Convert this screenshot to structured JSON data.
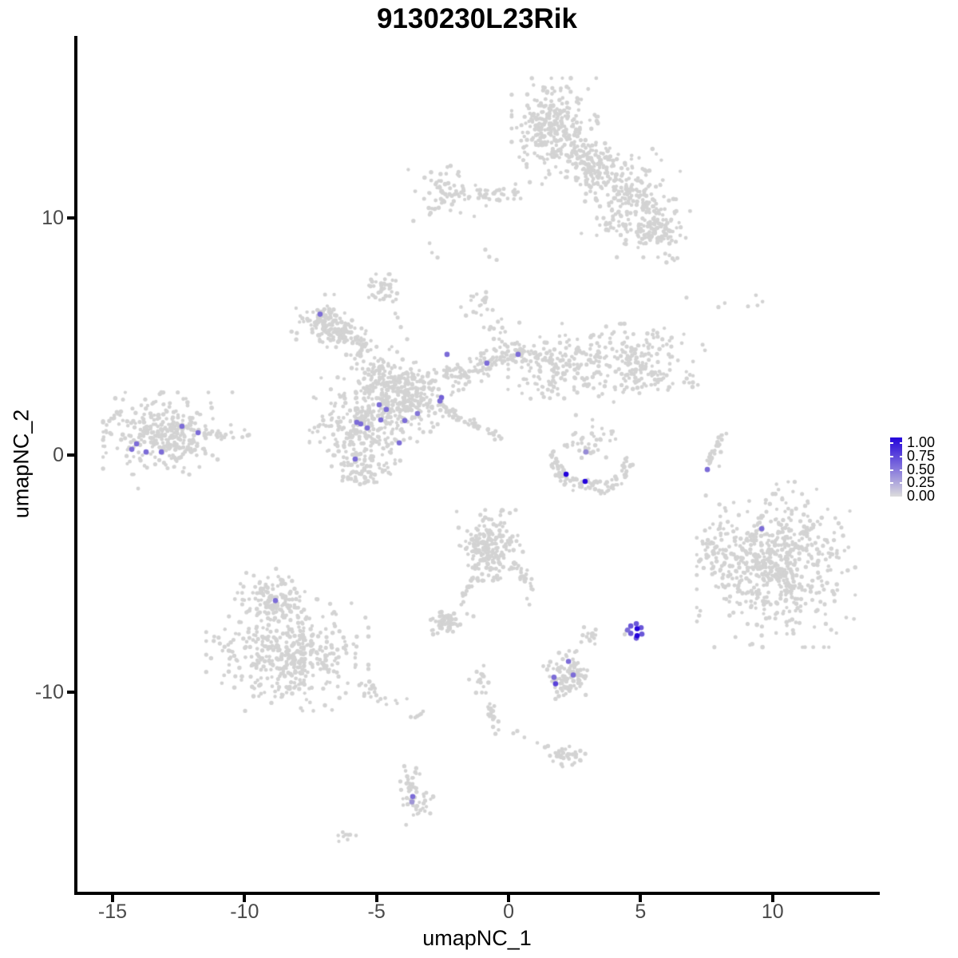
{
  "title": "9130230L23Rik",
  "axes": {
    "x": {
      "label": "umapNC_1",
      "tick_values": [
        -15,
        -10,
        -5,
        0,
        5,
        10
      ],
      "tick_labels": [
        "-15",
        "-10",
        "-5",
        "0",
        "5",
        "10"
      ]
    },
    "y": {
      "label": "umapNC_2",
      "tick_values": [
        10,
        0,
        -10
      ],
      "tick_labels": [
        "10",
        "0",
        "-10"
      ]
    }
  },
  "legend": {
    "tick_labels": [
      "1.00",
      "0.75",
      "0.50",
      "0.25",
      "0.00"
    ],
    "tick_values": [
      1.0,
      0.75,
      0.5,
      0.25,
      0.0
    ],
    "color_high": "#2404DB",
    "color_low": "#DCDCDC"
  },
  "chart_data": {
    "type": "scatter",
    "title": "9130230L23Rik",
    "xlabel": "umapNC_1",
    "ylabel": "umapNC_2",
    "xlim": [
      -16.39,
      14.0
    ],
    "ylim": [
      -18.39,
      17.65
    ],
    "grid": false,
    "point_colors": {
      "background": "#D3D3D3",
      "expression_low": "#D3D3D3",
      "expression_high": "#2404DB"
    },
    "background_clusters": [
      {
        "type": "gauss",
        "cx": 1.75,
        "cy": 13.64,
        "sx": 0.68,
        "sy": 0.93,
        "n": 300
      },
      {
        "type": "gauss",
        "cx": 3.27,
        "cy": 12.12,
        "sx": 0.42,
        "sy": 0.55,
        "n": 130
      },
      {
        "type": "gauss",
        "cx": 4.63,
        "cy": 10.61,
        "sx": 0.78,
        "sy": 0.95,
        "n": 250
      },
      {
        "type": "gauss",
        "cx": 5.84,
        "cy": 9.43,
        "sx": 0.45,
        "sy": 0.55,
        "n": 70
      },
      {
        "type": "line",
        "x1": -2.55,
        "y1": 10.95,
        "x2": 0.65,
        "y2": 11.02,
        "j": 0.16,
        "n": 55
      },
      {
        "type": "gauss",
        "cx": -2.69,
        "cy": 11.35,
        "sx": 0.5,
        "sy": 0.62,
        "n": 40
      },
      {
        "type": "points",
        "pts": [
          [
            -1.82,
            10.2
          ],
          [
            -1.3,
            10.05
          ],
          [
            -2.2,
            10.3
          ],
          [
            -0.85,
            10.5
          ],
          [
            -2.99,
            8.92
          ],
          [
            -2.9,
            8.52
          ],
          [
            -2.69,
            8.32
          ],
          [
            -0.73,
            8.35
          ],
          [
            -0.45,
            8.22
          ],
          [
            -0.88,
            8.65
          ]
        ]
      },
      {
        "type": "points",
        "pts": [
          [
            6.74,
            6.63
          ],
          [
            8.19,
            6.4
          ],
          [
            9.37,
            6.73
          ],
          [
            9.62,
            6.46
          ],
          [
            9.07,
            6.26
          ],
          [
            9.43,
            6.3
          ],
          [
            7.95,
            6.23
          ],
          [
            7.35,
            4.65
          ],
          [
            7.44,
            4.41
          ]
        ]
      },
      {
        "type": "gauss",
        "cx": -12.91,
        "cy": 0.91,
        "sx": 1.02,
        "sy": 0.72,
        "n": 330
      },
      {
        "type": "line",
        "x1": -11.2,
        "y1": 0.75,
        "x2": -9.7,
        "y2": 0.82,
        "j": 0.12,
        "n": 14
      },
      {
        "type": "points",
        "pts": [
          [
            -14.03,
            -1.41
          ]
        ]
      },
      {
        "type": "line",
        "x1": -7.32,
        "y1": 5.89,
        "x2": -5.2,
        "y2": 4.38,
        "j": 0.3,
        "n": 130
      },
      {
        "type": "gauss",
        "cx": -7.02,
        "cy": 5.56,
        "sx": 0.5,
        "sy": 0.5,
        "n": 60
      },
      {
        "type": "gauss",
        "cx": -3.69,
        "cy": 2.53,
        "sx": 0.75,
        "sy": 0.65,
        "n": 230
      },
      {
        "type": "gauss",
        "cx": -5.5,
        "cy": 1.18,
        "sx": 0.85,
        "sy": 0.95,
        "n": 300
      },
      {
        "type": "gauss",
        "cx": -5.5,
        "cy": -0.6,
        "sx": 0.5,
        "sy": 0.4,
        "n": 60
      },
      {
        "type": "gauss",
        "cx": -4.9,
        "cy": 3.47,
        "sx": 0.5,
        "sy": 0.5,
        "n": 80
      },
      {
        "type": "line",
        "x1": -2.33,
        "y1": 3.2,
        "x2": 0.54,
        "y2": 4.38,
        "j": 0.28,
        "n": 120
      },
      {
        "type": "gauss",
        "cx": 1.9,
        "cy": 3.87,
        "sx": 0.8,
        "sy": 0.75,
        "n": 170
      },
      {
        "type": "gauss",
        "cx": 4.78,
        "cy": 3.8,
        "sx": 0.92,
        "sy": 0.72,
        "n": 190
      },
      {
        "type": "line",
        "x1": 6.44,
        "y1": 3.37,
        "x2": 7.35,
        "y2": 3.03,
        "j": 0.15,
        "n": 8
      },
      {
        "type": "line",
        "x1": -2.69,
        "y1": 2.12,
        "x2": -0.27,
        "y2": 0.67,
        "j": 0.09,
        "n": 50
      },
      {
        "type": "gauss",
        "cx": -0.51,
        "cy": 5.22,
        "sx": 0.45,
        "sy": 0.45,
        "n": 15
      },
      {
        "type": "gauss",
        "cx": -1.18,
        "cy": 6.33,
        "sx": 0.3,
        "sy": 0.22,
        "n": 18
      },
      {
        "type": "gauss",
        "cx": -4.81,
        "cy": 7.1,
        "sx": 0.3,
        "sy": 0.26,
        "n": 35
      },
      {
        "type": "points",
        "pts": [
          [
            -4.38,
            6.46
          ],
          [
            -4.29,
            5.96
          ],
          [
            -4.2,
            5.79
          ],
          [
            -4.08,
            5.39
          ],
          [
            -3.84,
            4.88
          ],
          [
            -4.5,
            6.7
          ]
        ]
      },
      {
        "type": "line",
        "x1": 1.54,
        "y1": 0.17,
        "x2": 2.09,
        "y2": -1.04,
        "j": 0.12,
        "n": 28
      },
      {
        "type": "line",
        "x1": 2.09,
        "y1": -1.11,
        "x2": 3.96,
        "y2": -1.45,
        "j": 0.13,
        "n": 45
      },
      {
        "type": "line",
        "x1": 3.96,
        "y1": -1.31,
        "x2": 4.57,
        "y2": -0.1,
        "j": 0.12,
        "n": 25
      },
      {
        "type": "gauss",
        "cx": 2.81,
        "cy": 0.67,
        "sx": 0.55,
        "sy": 0.45,
        "n": 40
      },
      {
        "type": "line",
        "x1": 8.04,
        "y1": 0.94,
        "x2": 7.53,
        "y2": -0.51,
        "j": 0.06,
        "n": 24
      },
      {
        "type": "points",
        "pts": [
          [
            7.95,
            0.44
          ],
          [
            8.04,
            0.13
          ],
          [
            7.98,
            -0.47
          ],
          [
            8.25,
            0.9
          ]
        ]
      },
      {
        "type": "gauss",
        "cx": 10.13,
        "cy": -4.61,
        "sx": 1.25,
        "sy": 1.45,
        "n": 620
      },
      {
        "type": "gauss",
        "cx": 7.95,
        "cy": -4.21,
        "sx": 0.38,
        "sy": 0.55,
        "n": 55
      },
      {
        "type": "gauss",
        "cx": -8.98,
        "cy": -6.06,
        "sx": 0.55,
        "sy": 0.6,
        "n": 130
      },
      {
        "type": "gauss",
        "cx": -8.38,
        "cy": -8.42,
        "sx": 1.28,
        "sy": 0.98,
        "n": 430
      },
      {
        "type": "line",
        "x1": -5.75,
        "y1": -9.7,
        "x2": -3.3,
        "y2": -11.0,
        "j": 0.18,
        "n": 30
      },
      {
        "type": "gauss",
        "cx": -0.76,
        "cy": -3.8,
        "sx": 0.55,
        "sy": 0.62,
        "n": 200
      },
      {
        "type": "line",
        "x1": 0.09,
        "y1": -4.55,
        "x2": 1.06,
        "y2": -5.62,
        "j": 0.12,
        "n": 30
      },
      {
        "type": "line",
        "x1": -1.24,
        "y1": -5.08,
        "x2": -1.81,
        "y2": -6.3,
        "j": 0.07,
        "n": 18
      },
      {
        "type": "points",
        "pts": [
          [
            0.7,
            -6.05
          ],
          [
            0.79,
            -6.3
          ]
        ]
      },
      {
        "type": "gauss",
        "cx": -2.45,
        "cy": -7.0,
        "sx": 0.3,
        "sy": 0.24,
        "n": 55
      },
      {
        "type": "points",
        "pts": [
          [
            -1.57,
            -6.69
          ],
          [
            -1.33,
            -6.79
          ]
        ]
      },
      {
        "type": "gauss",
        "cx": 2.27,
        "cy": -9.26,
        "sx": 0.42,
        "sy": 0.42,
        "n": 100
      },
      {
        "type": "gauss",
        "cx": 3.14,
        "cy": -7.64,
        "sx": 0.2,
        "sy": 0.18,
        "n": 14
      },
      {
        "type": "points",
        "pts": [
          [
            4.45,
            -7.4
          ],
          [
            4.4,
            -7.55
          ]
        ]
      },
      {
        "type": "gauss",
        "cx": -1.06,
        "cy": -9.53,
        "sx": 0.2,
        "sy": 0.3,
        "n": 16
      },
      {
        "type": "line",
        "x1": -0.76,
        "y1": -10.34,
        "x2": -0.39,
        "y2": -11.95,
        "j": 0.07,
        "n": 22
      },
      {
        "type": "points",
        "pts": [
          [
            0.18,
            -11.72
          ],
          [
            0.33,
            -11.62
          ],
          [
            0.6,
            -11.89
          ],
          [
            1.09,
            -12.12
          ]
        ]
      },
      {
        "type": "gauss",
        "cx": 2.09,
        "cy": -12.66,
        "sx": 0.34,
        "sy": 0.22,
        "n": 40
      },
      {
        "type": "gauss",
        "cx": -3.75,
        "cy": -13.74,
        "sx": 0.2,
        "sy": 0.3,
        "n": 22
      },
      {
        "type": "gauss",
        "cx": -3.48,
        "cy": -14.71,
        "sx": 0.26,
        "sy": 0.36,
        "n": 34
      },
      {
        "type": "points",
        "pts": [
          [
            -3.9,
            -13.3
          ],
          [
            -3.95,
            -13.1
          ]
        ]
      },
      {
        "type": "gauss",
        "cx": -6.14,
        "cy": -16.06,
        "sx": 0.16,
        "sy": 0.13,
        "n": 10
      }
    ],
    "expression_points": [
      [
        -12.37,
        1.21,
        0.5
      ],
      [
        -11.76,
        0.94,
        0.5
      ],
      [
        -14.09,
        0.47,
        0.5
      ],
      [
        -14.27,
        0.24,
        0.5
      ],
      [
        -13.73,
        0.13,
        0.5
      ],
      [
        -13.15,
        0.13,
        0.5
      ],
      [
        -7.14,
        5.93,
        0.5
      ],
      [
        -2.33,
        4.24,
        0.5
      ],
      [
        -0.82,
        3.87,
        0.5
      ],
      [
        0.36,
        4.24,
        0.5
      ],
      [
        -2.54,
        2.42,
        0.55
      ],
      [
        -2.6,
        2.28,
        0.5
      ],
      [
        -4.9,
        2.12,
        0.5
      ],
      [
        -4.63,
        1.92,
        0.5
      ],
      [
        -4.84,
        1.48,
        0.5
      ],
      [
        -5.75,
        1.38,
        0.5
      ],
      [
        -5.6,
        1.31,
        0.5
      ],
      [
        -5.35,
        1.14,
        0.5
      ],
      [
        -3.93,
        1.45,
        0.5
      ],
      [
        -3.45,
        1.75,
        0.45
      ],
      [
        -4.14,
        0.51,
        0.5
      ],
      [
        -5.81,
        -0.17,
        0.5
      ],
      [
        2.93,
        0.13,
        0.35
      ],
      [
        2.18,
        -0.81,
        1.0
      ],
      [
        2.9,
        -1.11,
        1.0
      ],
      [
        7.53,
        -0.61,
        0.5
      ],
      [
        9.59,
        -3.1,
        0.5
      ],
      [
        -8.83,
        -6.13,
        0.5
      ],
      [
        4.63,
        -7.2,
        0.6
      ],
      [
        4.84,
        -7.1,
        0.6
      ],
      [
        5.02,
        -7.27,
        0.6
      ],
      [
        4.63,
        -7.51,
        0.6
      ],
      [
        4.84,
        -7.71,
        0.6
      ],
      [
        5.05,
        -7.54,
        0.6
      ],
      [
        4.51,
        -7.37,
        0.5
      ],
      [
        4.87,
        -7.31,
        1.0
      ],
      [
        4.87,
        -7.61,
        1.0
      ],
      [
        2.27,
        -8.69,
        0.5
      ],
      [
        2.45,
        -9.26,
        0.5
      ],
      [
        1.72,
        -9.36,
        0.5
      ],
      [
        1.78,
        -9.63,
        0.7
      ],
      [
        -3.63,
        -14.38,
        0.5
      ],
      [
        -3.66,
        -14.61,
        0.3
      ]
    ]
  }
}
